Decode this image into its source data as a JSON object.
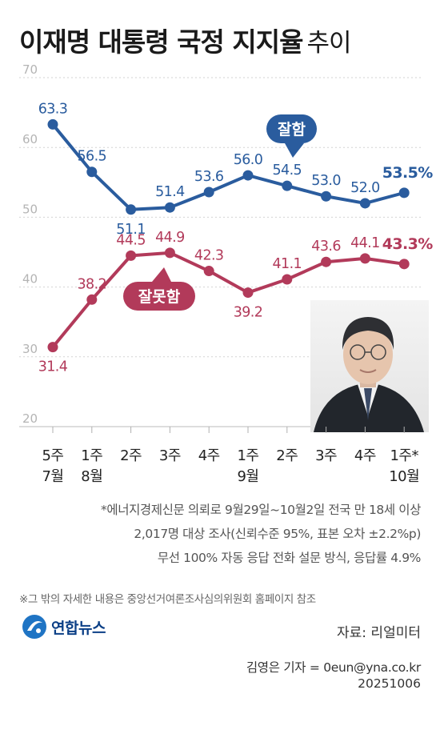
{
  "title": {
    "main": "이재명 대통령 국정 지지율",
    "sub": "추이"
  },
  "chart_data": {
    "type": "line",
    "categories": [
      [
        "5주",
        "7월"
      ],
      [
        "1주",
        "8월"
      ],
      [
        "2주"
      ],
      [
        "3주"
      ],
      [
        "4주"
      ],
      [
        "1주",
        "9월"
      ],
      [
        "2주"
      ],
      [
        "3주"
      ],
      [
        "4주"
      ],
      [
        "1주*",
        "10월"
      ]
    ],
    "ylim": [
      20,
      70
    ],
    "yticks": [
      70,
      60,
      50,
      40,
      30,
      20
    ],
    "series": [
      {
        "name": "잘함",
        "color": "#2a5c9e",
        "values": [
          63.3,
          56.5,
          51.1,
          51.4,
          53.6,
          56.0,
          54.5,
          53.0,
          52.0,
          53.5
        ],
        "last_label": "53.5%"
      },
      {
        "name": "잘못함",
        "color": "#b23a5a",
        "values": [
          31.4,
          38.2,
          44.5,
          44.9,
          42.3,
          39.2,
          41.1,
          43.6,
          44.1,
          43.3
        ],
        "last_label": "43.3%"
      }
    ]
  },
  "footnotes": {
    "survey_line1": "*에너지경제신문 의뢰로 9월29일~10월2일 전국 만 18세 이상",
    "survey_line2": "2,017명 대상 조사(신뢰수준 95%, 표본 오차 ±2.2%p)",
    "survey_line3": "무선 100% 자동 응답 전화 설문 방식, 응답률 4.9%",
    "reference": "※그 밖의 자세한 내용은 중앙선거여론조사심의위원회 홈페이지 참조"
  },
  "logo_text": "연합뉴스",
  "source": "자료: 리얼미터",
  "reporter": "김영은 기자 = 0eun@yna.co.kr",
  "date": "20251006",
  "colors": {
    "approve": "#2a5c9e",
    "disapprove": "#b23a5a",
    "axis": "#c8c8c8"
  }
}
